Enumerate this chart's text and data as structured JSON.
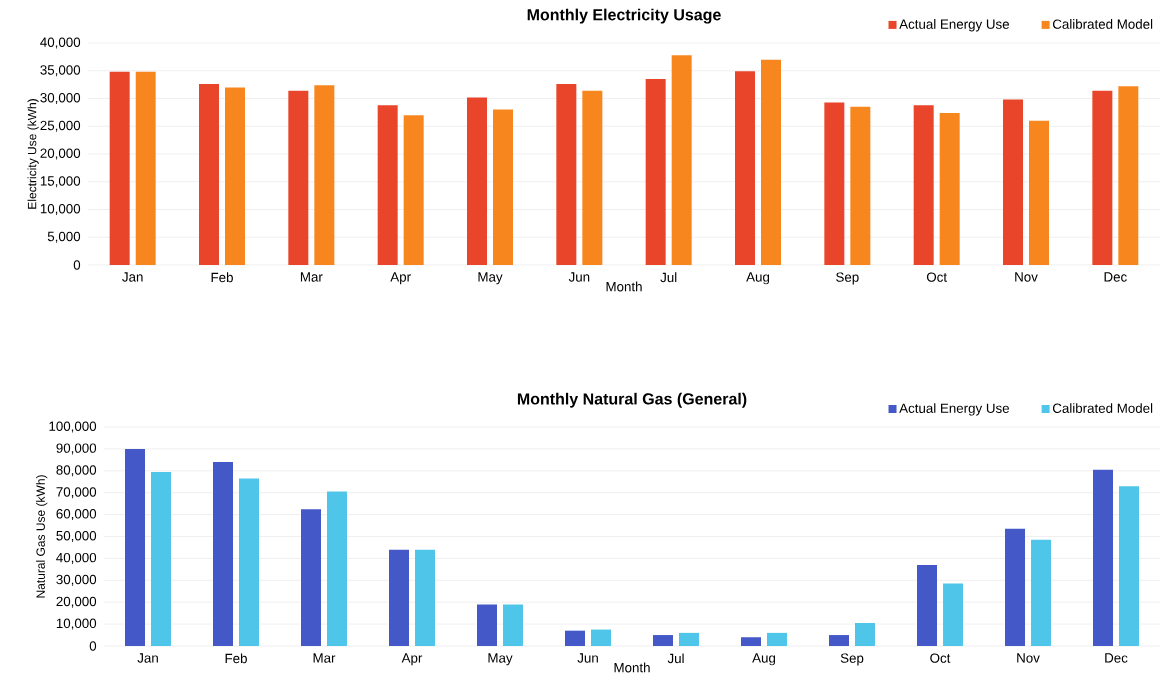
{
  "chart_data": [
    {
      "type": "bar",
      "title": "Monthly Electricity Usage",
      "xlabel": "Month",
      "ylabel": "Electricity Use (kWh)",
      "categories": [
        "Jan",
        "Feb",
        "Mar",
        "Apr",
        "May",
        "Jun",
        "Jul",
        "Aug",
        "Sep",
        "Oct",
        "Nov",
        "Dec"
      ],
      "series": [
        {
          "name": "Actual Energy Use",
          "color": "#e8452a",
          "values": [
            34800,
            32600,
            31400,
            28800,
            30200,
            32600,
            33500,
            34900,
            29300,
            28800,
            29800,
            31400
          ]
        },
        {
          "name": "Calibrated Model",
          "color": "#f7861f",
          "values": [
            34800,
            32000,
            32400,
            27000,
            28000,
            31400,
            37800,
            37000,
            28500,
            27400,
            26000,
            32200
          ]
        }
      ],
      "ylim": [
        0,
        40000
      ],
      "yticks": [
        0,
        {
          "value": 5000,
          "label": "5,000"
        },
        {
          "value": 10000,
          "label": "10,000"
        },
        {
          "value": 15000,
          "label": "15,000"
        },
        {
          "value": 20000,
          "label": "20,000"
        },
        {
          "value": 25000,
          "label": "25,000"
        },
        {
          "value": 30000,
          "label": "30,000"
        },
        {
          "value": 35000,
          "label": "35,000"
        },
        {
          "value": 40000,
          "label": "40,000"
        }
      ],
      "grid": "y",
      "legend": "top right"
    },
    {
      "type": "bar",
      "title": "Monthly Natural Gas (General)",
      "xlabel": "Month",
      "ylabel": "Natural Gas Use (kWh)",
      "categories": [
        "Jan",
        "Feb",
        "Mar",
        "Apr",
        "May",
        "Jun",
        "Jul",
        "Aug",
        "Sep",
        "Oct",
        "Nov",
        "Dec"
      ],
      "series": [
        {
          "name": "Actual Energy Use",
          "color": "#4558c8",
          "values": [
            90000,
            84000,
            62500,
            44000,
            19000,
            7000,
            5000,
            4000,
            5000,
            37000,
            53500,
            80500
          ]
        },
        {
          "name": "Calibrated Model",
          "color": "#4fc5ea",
          "values": [
            79500,
            76500,
            70500,
            44000,
            19000,
            7500,
            6000,
            6000,
            10500,
            28500,
            48500,
            73000
          ]
        }
      ],
      "ylim": [
        0,
        100000
      ],
      "yticks": [
        0,
        {
          "value": 10000,
          "label": "10,000"
        },
        {
          "value": 20000,
          "label": "20,000"
        },
        {
          "value": 30000,
          "label": "30,000"
        },
        {
          "value": 40000,
          "label": "40,000"
        },
        {
          "value": 50000,
          "label": "50,000"
        },
        {
          "value": 60000,
          "label": "60,000"
        },
        {
          "value": 70000,
          "label": "70,000"
        },
        {
          "value": 80000,
          "label": "80,000"
        },
        {
          "value": 90000,
          "label": "90,000"
        },
        {
          "value": 100000,
          "label": "100,000"
        }
      ],
      "grid": "y",
      "legend": "top right"
    }
  ]
}
